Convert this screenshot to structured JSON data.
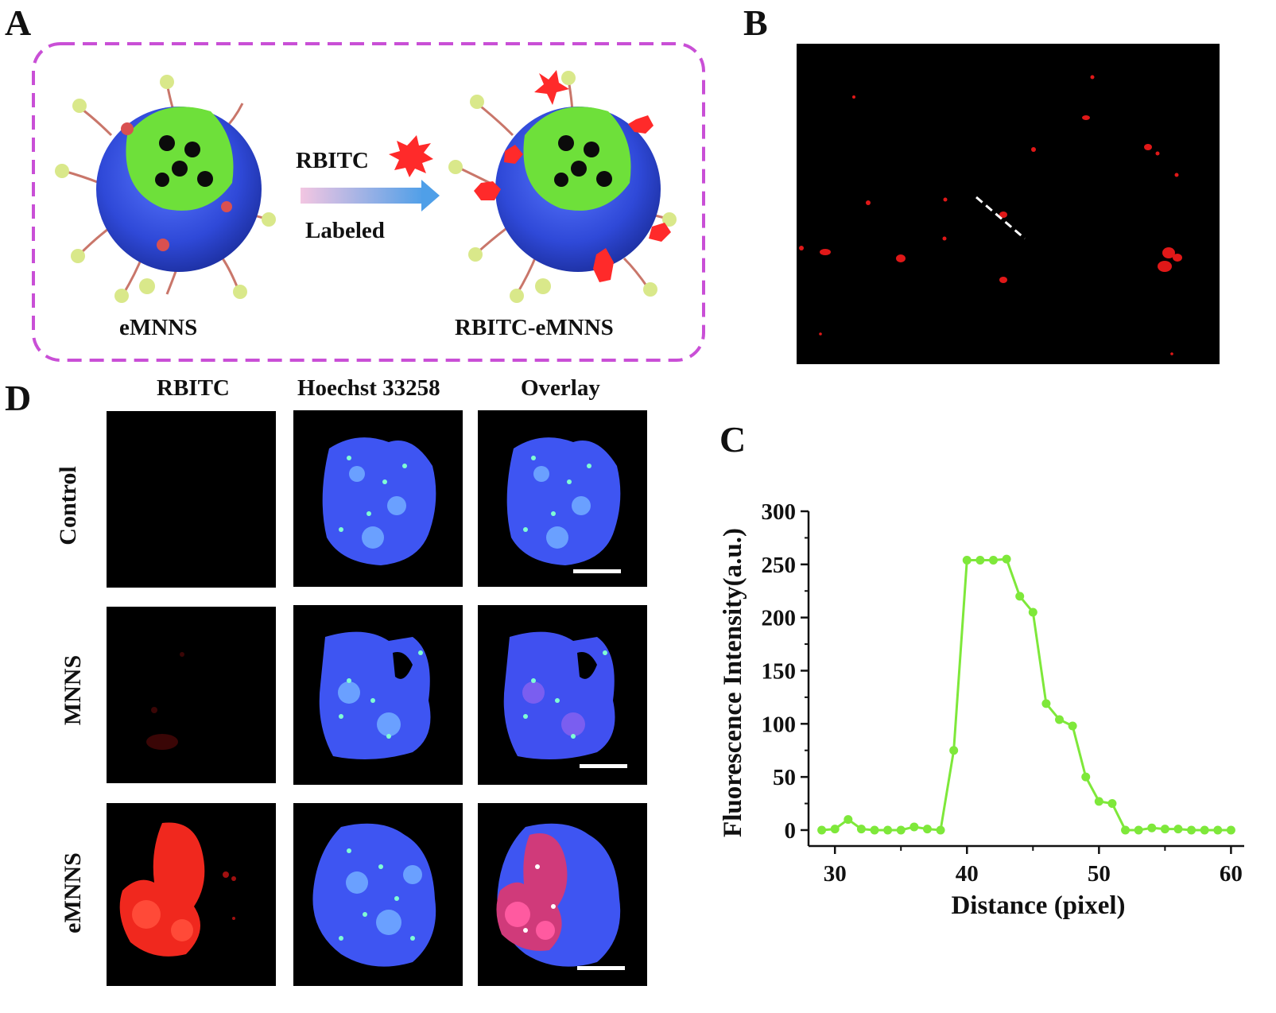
{
  "panel_labels": {
    "a": "A",
    "b": "B",
    "c": "C",
    "d": "D"
  },
  "panel_a": {
    "left_caption": "eMNNS",
    "right_caption": "RBITC-eMNNS",
    "reagent": "RBITC",
    "process": "Labeled"
  },
  "panel_d": {
    "columns": [
      "RBITC",
      "Hoechst 33258",
      "Overlay"
    ],
    "rows": [
      "Control",
      "MNNS",
      "eMNNS"
    ]
  },
  "colors": {
    "dashed_border": "#c94fd6",
    "shell": "#3a55e0",
    "core": "#6ee03a",
    "rbitc": "#ff2a2a",
    "line": "#7ee83a"
  },
  "chart_data": {
    "type": "line",
    "xlabel": "Distance (pixel)",
    "ylabel": "Fluorescence Intensity(a.u.)",
    "xlim": [
      28,
      61
    ],
    "ylim": [
      -15,
      300
    ],
    "xticks": [
      30,
      40,
      50,
      60
    ],
    "yticks": [
      0,
      50,
      100,
      150,
      200,
      250,
      300
    ],
    "grid": false,
    "x": [
      29,
      30,
      31,
      32,
      33,
      34,
      35,
      36,
      37,
      38,
      39,
      40,
      41,
      42,
      43,
      44,
      45,
      46,
      47,
      48,
      49,
      50,
      51,
      52,
      53,
      54,
      55,
      56,
      57,
      58,
      59,
      60
    ],
    "y": [
      0,
      1,
      10,
      1,
      0,
      0,
      0,
      3,
      1,
      0,
      75,
      254,
      254,
      254,
      255,
      220,
      205,
      119,
      104,
      98,
      50,
      27,
      25,
      0,
      0,
      2,
      1,
      1,
      0,
      0,
      0,
      0
    ]
  }
}
